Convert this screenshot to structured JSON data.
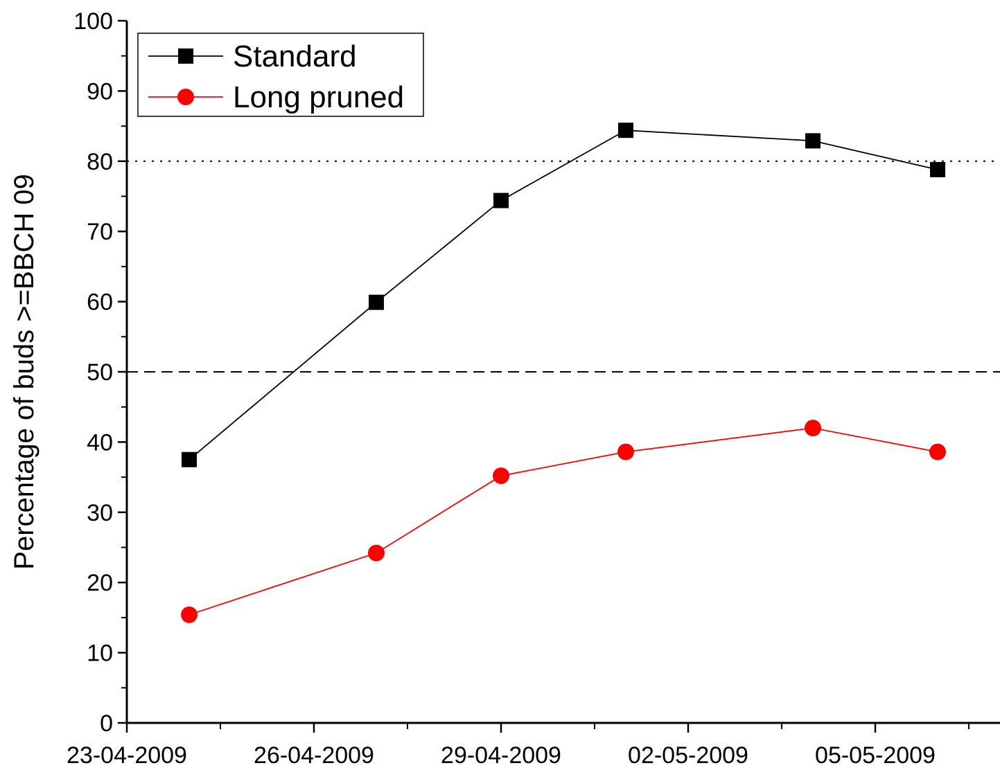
{
  "chart_data": {
    "type": "line",
    "title": "",
    "xlabel": "",
    "ylabel": "Percentage of buds >=BBCH 09",
    "xlim": [
      "2009-04-23",
      "2009-05-07"
    ],
    "ylim": [
      0,
      100
    ],
    "x_tick_labels": [
      "23-04-2009",
      "26-04-2009",
      "29-04-2009",
      "02-05-2009",
      "05-05-2009"
    ],
    "x_tick_dates": [
      "2009-04-23",
      "2009-04-26",
      "2009-04-29",
      "2009-05-02",
      "2009-05-05"
    ],
    "x_minor_tick_dates": [
      "2009-04-24T12:00",
      "2009-04-27T12:00",
      "2009-04-30T12:00",
      "2009-05-03T12:00",
      "2009-05-06T12:00"
    ],
    "y_ticks": [
      0,
      10,
      20,
      30,
      40,
      50,
      60,
      70,
      80,
      90,
      100
    ],
    "y_tick_labels": [
      "0",
      "10",
      "20",
      "30",
      "40",
      "50",
      "60",
      "70",
      "80",
      "90",
      "100"
    ],
    "grid": false,
    "legend_position": "top-left",
    "reference_lines": [
      {
        "y": 50,
        "style": "dashed"
      },
      {
        "y": 80,
        "style": "dotted"
      }
    ],
    "series": [
      {
        "name": "Standard",
        "marker": "square",
        "color": "#000000",
        "x": [
          "2009-04-24",
          "2009-04-27",
          "2009-04-29",
          "2009-05-01",
          "2009-05-04",
          "2009-05-06"
        ],
        "y": [
          37.5,
          59.9,
          74.4,
          84.4,
          82.9,
          78.8
        ]
      },
      {
        "name": "Long pruned",
        "marker": "circle",
        "color": "#ff0000",
        "x": [
          "2009-04-24",
          "2009-04-27",
          "2009-04-29",
          "2009-05-01",
          "2009-05-04",
          "2009-05-06"
        ],
        "y": [
          15.4,
          24.2,
          35.2,
          38.6,
          42.0,
          38.6
        ]
      }
    ]
  }
}
